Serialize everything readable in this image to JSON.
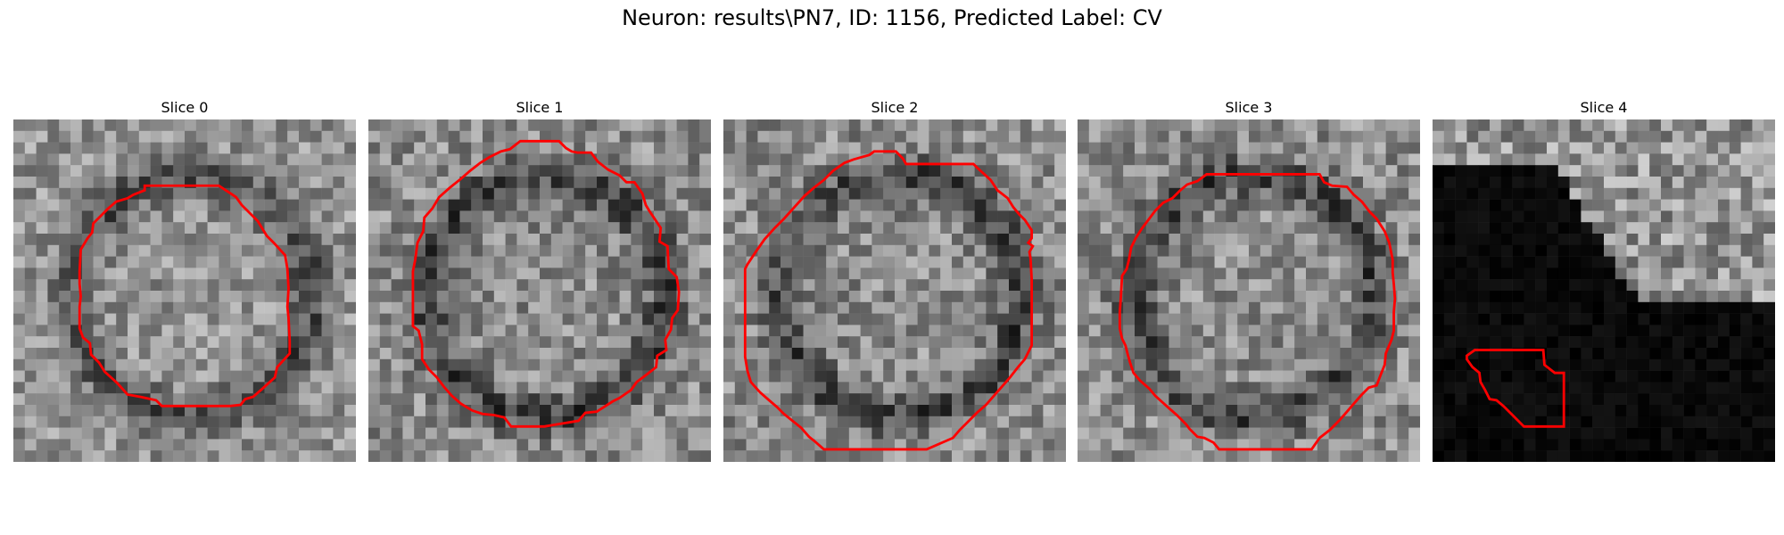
{
  "figure": {
    "title": "Neuron: results\\PN7, ID: 1156, Predicted Label: CV"
  },
  "panels": [
    {
      "title": "Slice 0",
      "seed": 11,
      "base": 0.58,
      "contrast": 0.38,
      "style": "ring"
    },
    {
      "title": "Slice 1",
      "seed": 23,
      "base": 0.55,
      "contrast": 0.4,
      "style": "ring"
    },
    {
      "title": "Slice 2",
      "seed": 37,
      "base": 0.55,
      "contrast": 0.4,
      "style": "ring"
    },
    {
      "title": "Slice 3",
      "seed": 51,
      "base": 0.55,
      "contrast": 0.4,
      "style": "ring"
    },
    {
      "title": "Slice 4",
      "seed": 67,
      "base": 0.15,
      "contrast": 0.45,
      "style": "dark"
    }
  ],
  "colors": {
    "contour": "#ff0000",
    "background": "#ffffff"
  }
}
